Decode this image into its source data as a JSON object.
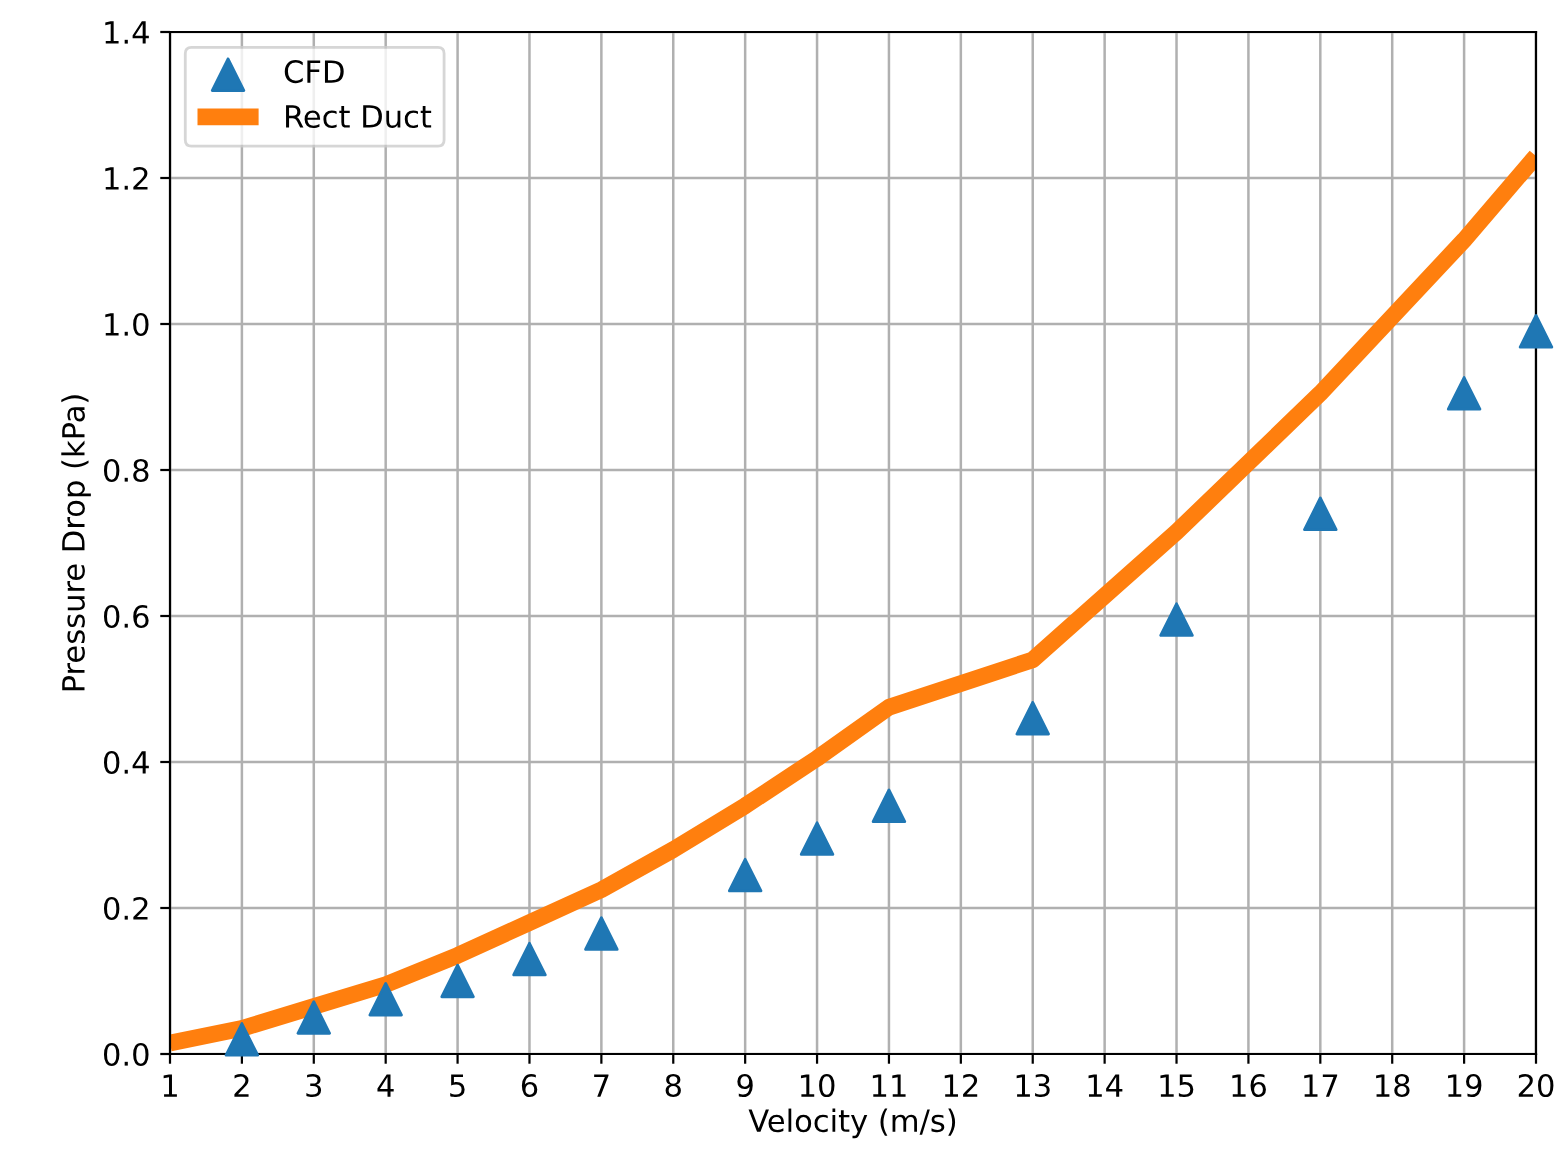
{
  "chart_data": {
    "type": "line",
    "xlabel": "Velocity (m/s)",
    "ylabel": "Pressure Drop (kPa)",
    "series": [
      {
        "name": "CFD",
        "type": "scatter",
        "color": "#1f77b4",
        "marker": "triangle",
        "x": [
          2,
          3,
          4,
          5,
          6,
          7,
          9,
          10,
          11,
          13,
          15,
          17,
          19,
          20
        ],
        "values": [
          0.02,
          0.05,
          0.075,
          0.1,
          0.13,
          0.165,
          0.245,
          0.295,
          0.34,
          0.46,
          0.595,
          0.74,
          0.905,
          0.99
        ]
      },
      {
        "name": "Rect Duct",
        "color": "#ff7f0e",
        "line_style": "solid",
        "x": [
          1,
          2,
          3,
          4,
          5,
          6,
          7,
          8,
          9,
          10,
          11,
          13,
          15,
          17,
          19,
          20
        ],
        "values": [
          0.015,
          0.035,
          0.065,
          0.095,
          0.135,
          0.18,
          0.225,
          0.28,
          0.34,
          0.405,
          0.475,
          0.54,
          0.715,
          0.905,
          1.115,
          1.23
        ]
      }
    ],
    "xlim": [
      1,
      20
    ],
    "xticks": [
      1,
      2,
      3,
      4,
      5,
      6,
      7,
      8,
      9,
      10,
      11,
      12,
      13,
      14,
      15,
      16,
      17,
      18,
      19,
      20
    ],
    "ylim": [
      0,
      1.4
    ],
    "yticks": [
      {
        "value": 0,
        "label": "0.0"
      },
      {
        "value": 0.2,
        "label": "0.2"
      },
      {
        "value": 0.4,
        "label": "0.4"
      },
      {
        "value": 0.6,
        "label": "0.6"
      },
      {
        "value": 0.8,
        "label": "0.8"
      },
      {
        "value": 1.0,
        "label": "1.0"
      },
      {
        "value": 1.2,
        "label": "1.2"
      },
      {
        "value": 1.4,
        "label": "1.4"
      }
    ],
    "grid": true,
    "legend": "top left"
  }
}
